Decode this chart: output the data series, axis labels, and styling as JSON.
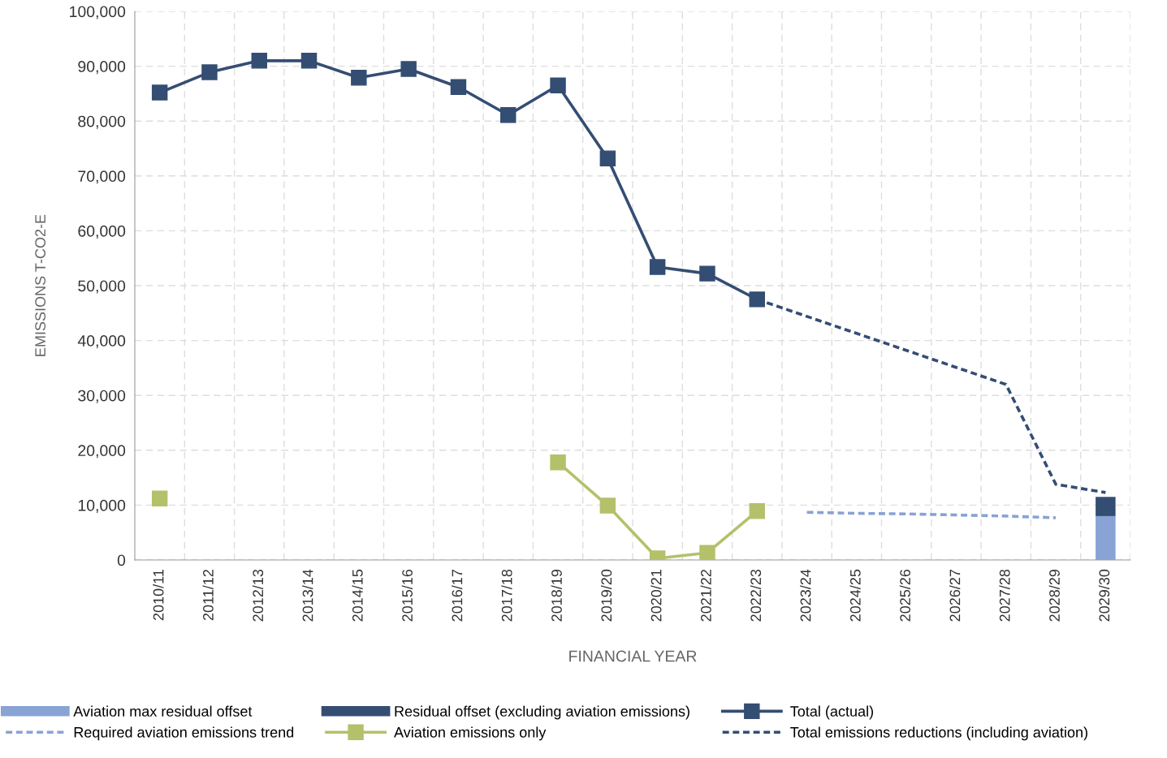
{
  "chart_data": {
    "type": "bar",
    "stacked": true,
    "xlabel": "FINANCIAL YEAR",
    "ylabel": "EMISSIONS T-CO2-E",
    "categories": [
      "2010/11",
      "2011/12",
      "2012/13",
      "2013/14",
      "2014/15",
      "2015/16",
      "2016/17",
      "2017/18",
      "2018/19",
      "2019/20",
      "2020/21",
      "2021/22",
      "2022/23",
      "2023/24",
      "2024/25",
      "2025/26",
      "2026/27",
      "2027/28",
      "2028/29",
      "2029/30"
    ],
    "ylim": [
      0,
      100000
    ],
    "yticks": [
      {
        "value": 0,
        "label": "0"
      },
      {
        "value": 10000,
        "label": "10,000"
      },
      {
        "value": 20000,
        "label": "20,000"
      },
      {
        "value": 30000,
        "label": "30,000"
      },
      {
        "value": 40000,
        "label": "40,000"
      },
      {
        "value": 50000,
        "label": "50,000"
      },
      {
        "value": 60000,
        "label": "60,000"
      },
      {
        "value": 70000,
        "label": "70,000"
      },
      {
        "value": 80000,
        "label": "80,000"
      },
      {
        "value": 90000,
        "label": "90,000"
      },
      {
        "value": 100000,
        "label": "100,000"
      }
    ],
    "grid": true,
    "legend": "bottom",
    "series": [
      {
        "name": "Aviation max residual offset",
        "color": "#88a3d4",
        "values": [
          null,
          null,
          null,
          null,
          null,
          null,
          null,
          null,
          null,
          null,
          null,
          null,
          null,
          null,
          null,
          null,
          null,
          null,
          null,
          8000
        ]
      },
      {
        "name": "Required aviation emissions trend",
        "type": "line",
        "line_style": "dashed",
        "marker": "none",
        "color": "#88a3d4",
        "values": [
          null,
          null,
          null,
          null,
          null,
          null,
          null,
          null,
          null,
          null,
          null,
          null,
          null,
          8700,
          8500,
          8400,
          8200,
          8000,
          7700,
          null
        ]
      },
      {
        "name": "Residual offset (excluding aviation emissions)",
        "color": "#344d73",
        "values": [
          null,
          null,
          null,
          null,
          null,
          null,
          null,
          null,
          null,
          null,
          null,
          null,
          null,
          null,
          null,
          null,
          null,
          null,
          null,
          3500
        ]
      },
      {
        "name": "Aviation emissions only",
        "type": "line",
        "line_style": "solid",
        "marker": "square",
        "color": "#b5c06a",
        "values": [
          11200,
          null,
          null,
          null,
          null,
          null,
          null,
          null,
          17800,
          9900,
          300,
          1300,
          8900,
          null,
          null,
          null,
          null,
          null,
          null,
          null
        ]
      },
      {
        "name": "Total (actual)",
        "type": "line",
        "line_style": "solid",
        "marker": "square",
        "color": "#344d73",
        "values": [
          85200,
          88900,
          91000,
          91000,
          87900,
          89500,
          86200,
          81100,
          86500,
          73200,
          53400,
          52200,
          47500,
          null,
          null,
          null,
          null,
          null,
          null,
          null
        ]
      },
      {
        "name": "Total emissions reductions (including aviation)",
        "type": "line",
        "line_style": "dashed",
        "marker": "none",
        "color": "#344d73",
        "values": [
          null,
          null,
          null,
          null,
          null,
          null,
          null,
          null,
          null,
          null,
          null,
          null,
          47500,
          44400,
          41300,
          38200,
          35100,
          32000,
          13800,
          12300
        ]
      }
    ]
  }
}
